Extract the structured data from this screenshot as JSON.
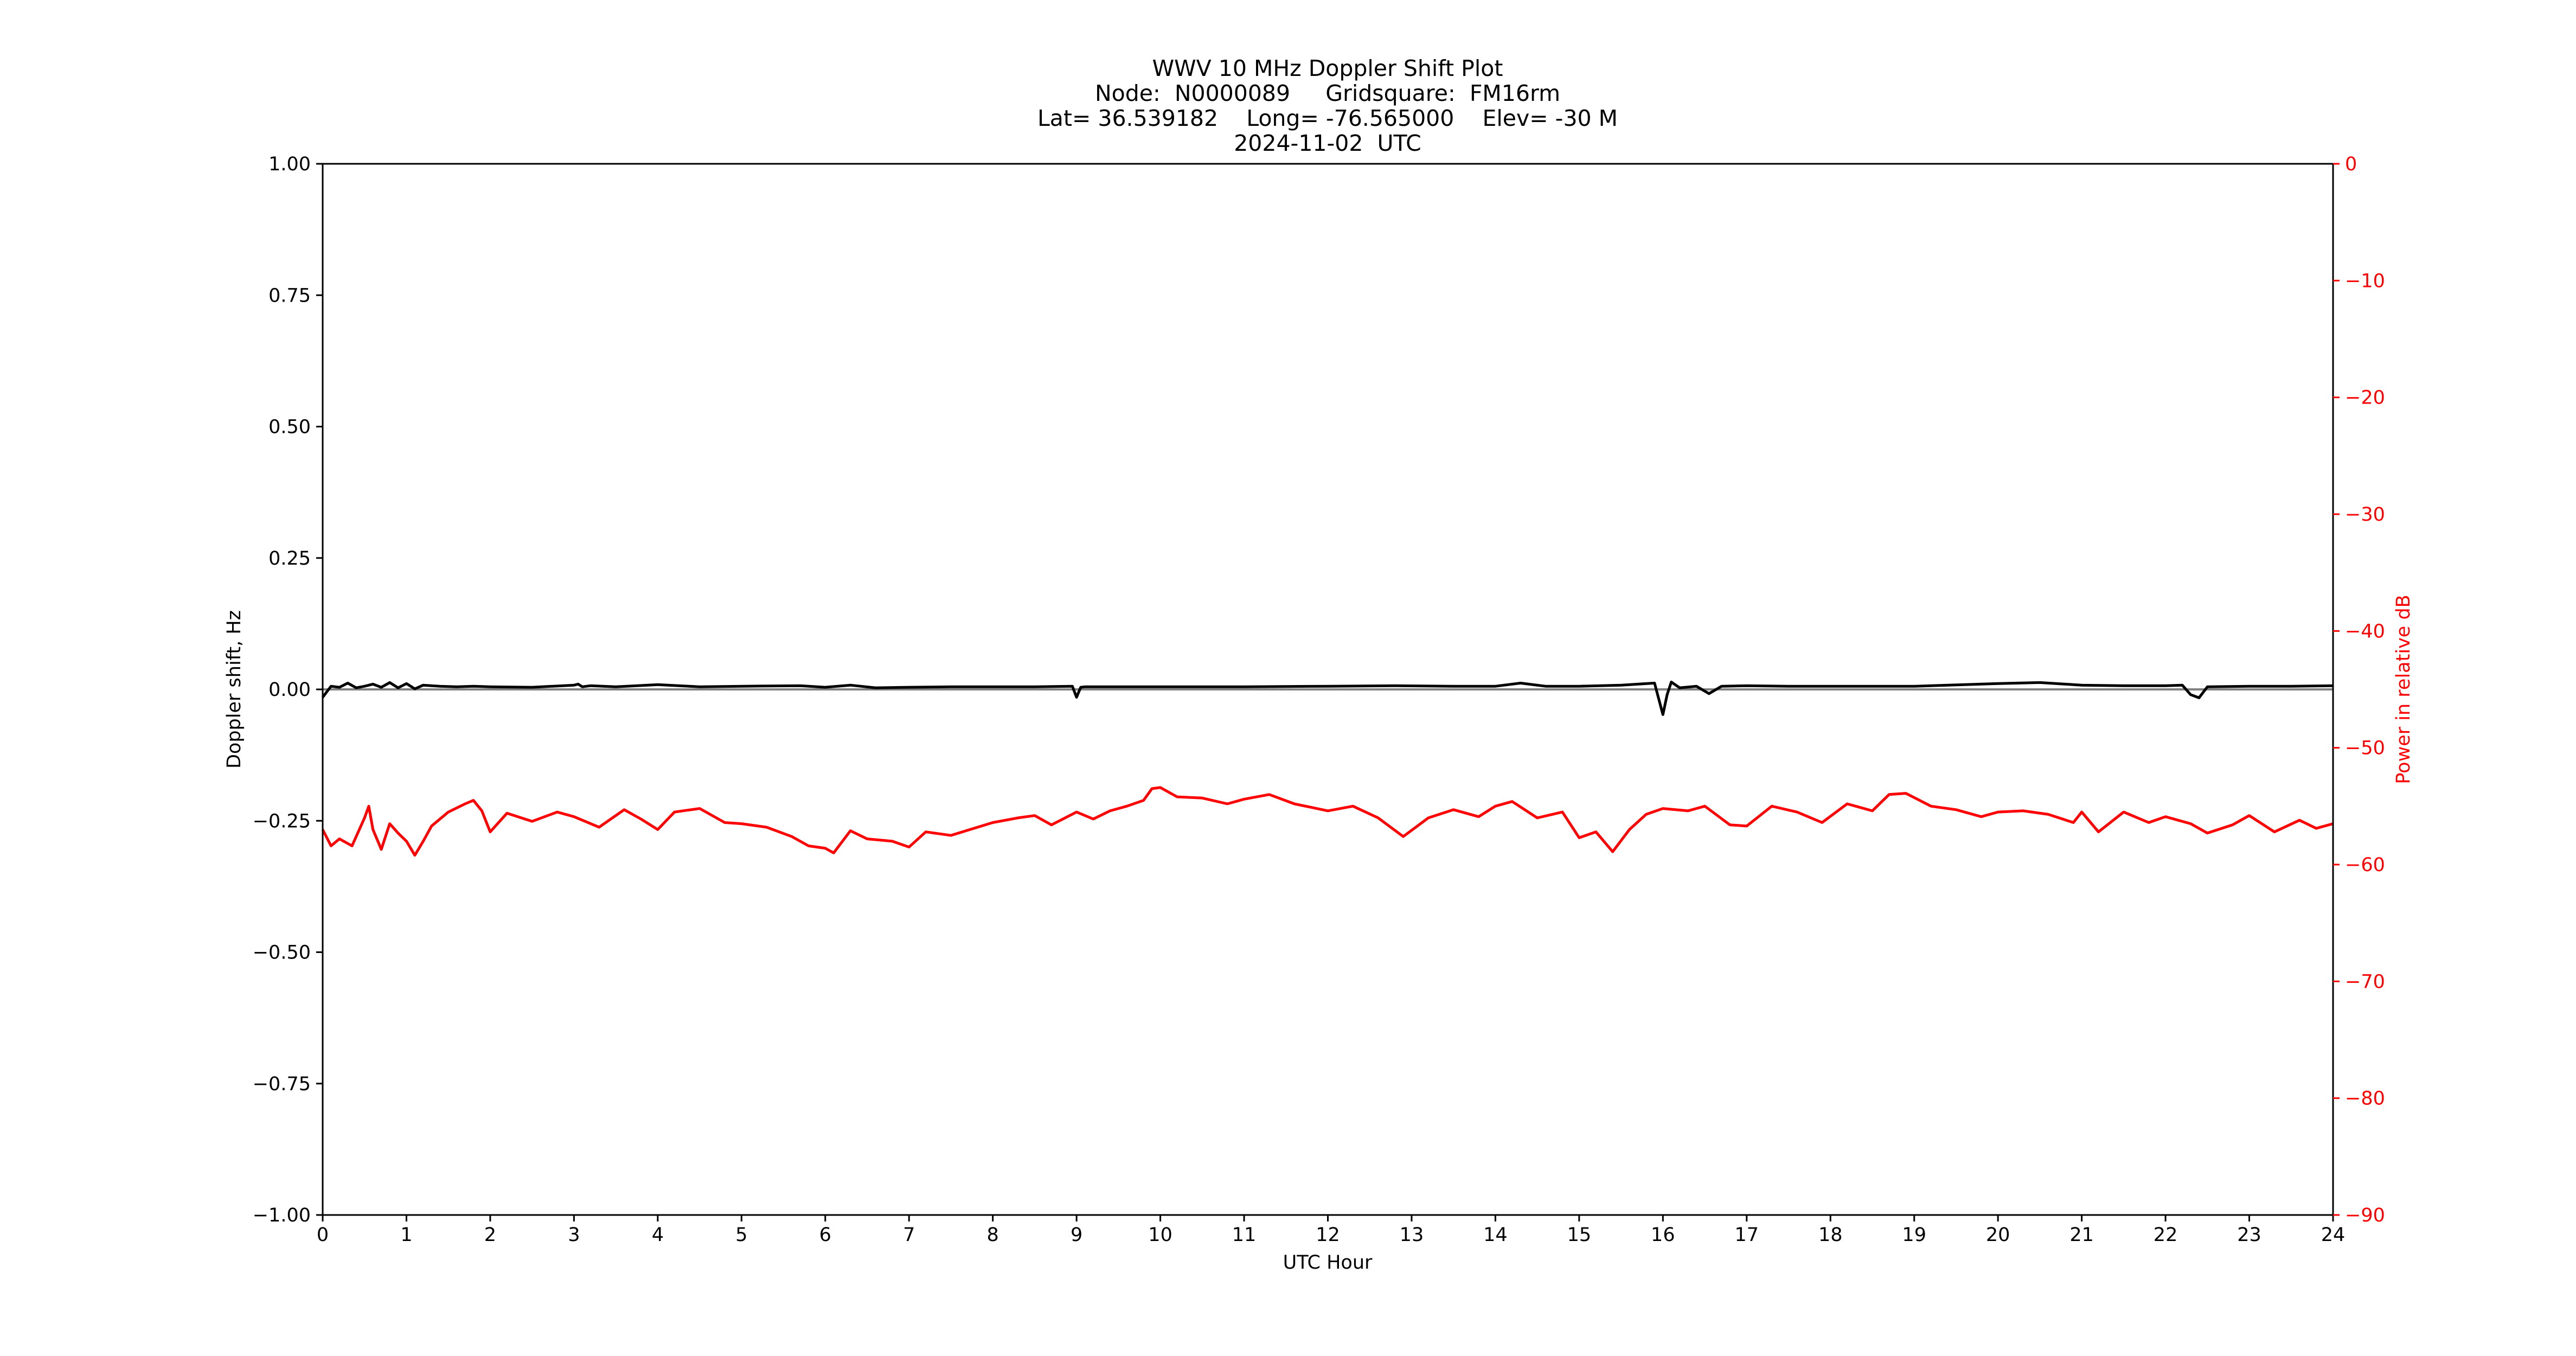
{
  "chart_data": {
    "type": "line",
    "title_lines": [
      "WWV 10 MHz Doppler Shift Plot",
      "Node:  N0000089     Gridsquare:  FM16rm",
      "Lat= 36.539182    Long= -76.565000    Elev= -30 M",
      "2024-11-02  UTC"
    ],
    "xlabel": "UTC Hour",
    "ylabel": "Doppler shift, Hz",
    "y2label": "Power in relative dB",
    "xlim": [
      0,
      24
    ],
    "ylim": [
      -1.0,
      1.0
    ],
    "y2lim": [
      -90,
      0
    ],
    "x_ticks": [
      "0",
      "1",
      "2",
      "3",
      "4",
      "5",
      "6",
      "7",
      "8",
      "9",
      "10",
      "11",
      "12",
      "13",
      "14",
      "15",
      "16",
      "17",
      "18",
      "19",
      "20",
      "21",
      "22",
      "23",
      "24"
    ],
    "y_ticks": [
      "1.00",
      "0.75",
      "0.50",
      "0.25",
      "0.00",
      "−0.25",
      "−0.50",
      "−0.75",
      "−1.00"
    ],
    "y_tick_values": [
      1.0,
      0.75,
      0.5,
      0.25,
      0.0,
      -0.25,
      -0.5,
      -0.75,
      -1.0
    ],
    "y2_ticks": [
      "0",
      "−10",
      "−20",
      "−30",
      "−40",
      "−50",
      "−60",
      "−70",
      "−80",
      "−90"
    ],
    "y2_tick_values": [
      0,
      -10,
      -20,
      -30,
      -40,
      -50,
      -60,
      -70,
      -80,
      -90
    ],
    "grid": false,
    "reference_line_y": 0.0,
    "colors": {
      "doppler": "#000000",
      "power": "#ff0000",
      "reference": "#808080",
      "axis": "#000000",
      "y2_axis": "#ff0000"
    },
    "series": [
      {
        "axis": "left",
        "x": [
          0,
          0.1,
          0.2,
          0.3,
          0.4,
          0.5,
          0.6,
          0.7,
          0.8,
          0.9,
          1.0,
          1.1,
          1.2,
          1.4,
          1.6,
          1.8,
          2.0,
          2.5,
          3.0,
          3.05,
          3.1,
          3.2,
          3.5,
          4.0,
          4.5,
          5.0,
          5.7,
          6.0,
          6.3,
          6.6,
          7.0,
          7.5,
          8.0,
          8.5,
          8.95,
          9.0,
          9.05,
          9.1,
          9.3,
          10.0,
          11.0,
          12.0,
          12.8,
          13.5,
          14.0,
          14.3,
          14.6,
          15.0,
          15.5,
          15.9,
          16.0,
          16.05,
          16.1,
          16.2,
          16.4,
          16.55,
          16.7,
          17.0,
          17.5,
          18.0,
          19.0,
          20.0,
          20.5,
          21.0,
          21.5,
          22.0,
          22.2,
          22.3,
          22.4,
          22.5,
          23.0,
          23.5,
          24.0
        ],
        "values": [
          -0.015,
          0.006,
          0.004,
          0.012,
          0.003,
          0.006,
          0.01,
          0.004,
          0.013,
          0.003,
          0.011,
          0.001,
          0.008,
          0.006,
          0.005,
          0.006,
          0.005,
          0.004,
          0.008,
          0.01,
          0.005,
          0.007,
          0.005,
          0.009,
          0.005,
          0.006,
          0.007,
          0.004,
          0.008,
          0.003,
          0.004,
          0.005,
          0.005,
          0.005,
          0.006,
          -0.015,
          0.004,
          0.005,
          0.005,
          0.005,
          0.005,
          0.006,
          0.007,
          0.006,
          0.006,
          0.012,
          0.006,
          0.006,
          0.008,
          0.012,
          -0.048,
          -0.01,
          0.014,
          0.003,
          0.006,
          -0.008,
          0.006,
          0.007,
          0.006,
          0.006,
          0.006,
          0.011,
          0.013,
          0.008,
          0.007,
          0.007,
          0.008,
          -0.01,
          -0.016,
          0.005,
          0.006,
          0.006,
          0.007
        ]
      },
      {
        "axis": "right",
        "x": [
          0,
          0.1,
          0.2,
          0.35,
          0.5,
          0.55,
          0.6,
          0.7,
          0.8,
          0.9,
          1.0,
          1.1,
          1.2,
          1.3,
          1.5,
          1.7,
          1.8,
          1.9,
          2.0,
          2.2,
          2.5,
          2.8,
          3.0,
          3.3,
          3.6,
          3.8,
          4.0,
          4.2,
          4.5,
          4.8,
          5.0,
          5.3,
          5.6,
          5.8,
          6.0,
          6.1,
          6.3,
          6.5,
          6.8,
          7.0,
          7.2,
          7.5,
          8.0,
          8.3,
          8.5,
          8.7,
          9.0,
          9.2,
          9.4,
          9.6,
          9.8,
          9.9,
          10.0,
          10.2,
          10.5,
          10.8,
          11.0,
          11.3,
          11.6,
          12.0,
          12.3,
          12.6,
          12.9,
          13.2,
          13.5,
          13.8,
          14.0,
          14.2,
          14.5,
          14.8,
          15.0,
          15.2,
          15.4,
          15.6,
          15.8,
          16.0,
          16.3,
          16.5,
          16.8,
          17.0,
          17.3,
          17.6,
          17.9,
          18.2,
          18.5,
          18.7,
          18.9,
          19.2,
          19.5,
          19.8,
          20.0,
          20.3,
          20.6,
          20.9,
          21.0,
          21.2,
          21.5,
          21.8,
          22.0,
          22.3,
          22.5,
          22.8,
          23.0,
          23.3,
          23.6,
          23.8,
          24.0
        ],
        "values": [
          -57.0,
          -58.4,
          -57.8,
          -58.4,
          -56.0,
          -55.0,
          -57.0,
          -58.7,
          -56.5,
          -57.3,
          -58.0,
          -59.2,
          -58.0,
          -56.7,
          -55.5,
          -54.8,
          -54.5,
          -55.4,
          -57.2,
          -55.6,
          -56.3,
          -55.5,
          -55.9,
          -56.8,
          -55.3,
          -56.1,
          -57.0,
          -55.5,
          -55.2,
          -56.4,
          -56.5,
          -56.8,
          -57.6,
          -58.4,
          -58.6,
          -59.0,
          -57.1,
          -57.8,
          -58.0,
          -58.5,
          -57.2,
          -57.5,
          -56.4,
          -56.0,
          -55.8,
          -56.6,
          -55.5,
          -56.1,
          -55.4,
          -55.0,
          -54.5,
          -53.5,
          -53.4,
          -54.2,
          -54.3,
          -54.8,
          -54.4,
          -54.0,
          -54.8,
          -55.4,
          -55.0,
          -56.0,
          -57.6,
          -56.0,
          -55.3,
          -55.9,
          -55.0,
          -54.6,
          -56.0,
          -55.5,
          -57.7,
          -57.2,
          -58.9,
          -57.0,
          -55.7,
          -55.2,
          -55.4,
          -55.0,
          -56.6,
          -56.7,
          -55.0,
          -55.5,
          -56.4,
          -54.8,
          -55.4,
          -54.0,
          -53.9,
          -55.0,
          -55.3,
          -55.9,
          -55.5,
          -55.4,
          -55.7,
          -56.4,
          -55.5,
          -57.2,
          -55.5,
          -56.4,
          -55.9,
          -56.5,
          -57.3,
          -56.6,
          -55.8,
          -57.2,
          -56.2,
          -56.9,
          -56.5
        ]
      }
    ]
  }
}
